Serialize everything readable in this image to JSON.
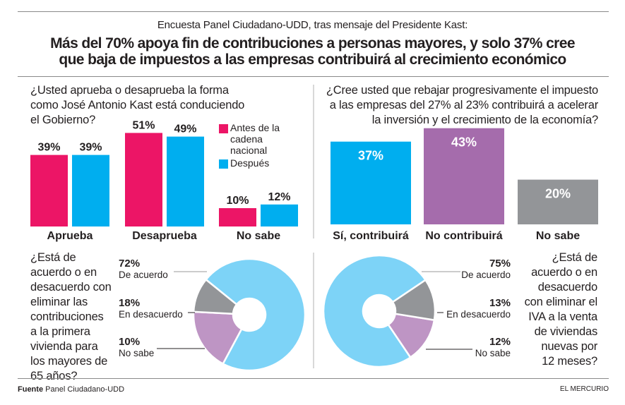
{
  "header": {
    "kicker": "Encuesta Panel Ciudadano-UDD, tras mensaje del Presidente Kast:",
    "headline_line1": "Más del 70% apoya fin de contribuciones a personas mayores, y solo 37% cree",
    "headline_line2": "que baja de impuestos a las empresas contribuirá al crecimiento económico"
  },
  "colors": {
    "pink": "#ec1566",
    "blue": "#00aeef",
    "purple": "#a56cac",
    "gray": "#939598",
    "pie_blue": "#7dd3f7",
    "pie_purple": "#be95c4",
    "pie_gray": "#939598"
  },
  "chart_data": [
    {
      "id": "approval",
      "type": "bar",
      "title": "¿Usted aprueba o desaprueba la forma como José Antonio Kast está conduciendo el Gobierno?",
      "title_lines": [
        "¿Usted aprueba o desaprueba la forma",
        "como José Antonio Kast está conduciendo",
        "el Gobierno?"
      ],
      "categories": [
        "Aprueba",
        "Desaprueba",
        "No sabe"
      ],
      "series": [
        {
          "name": "Antes de la cadena nacional",
          "name_lines": [
            "Antes de la",
            "cadena",
            "nacional"
          ],
          "color": "#ec1566",
          "values": [
            39,
            51,
            10
          ]
        },
        {
          "name": "Después",
          "name_lines": [
            "Después"
          ],
          "color": "#00aeef",
          "values": [
            39,
            49,
            12
          ]
        }
      ],
      "value_suffix": "%",
      "legend": "top-right",
      "grid": false
    },
    {
      "id": "tax",
      "type": "bar",
      "title": "¿Cree usted que rebajar progresivamente el impuesto a las empresas del 27% al 23% contribuirá a acelerar la inversión y el crecimiento de la economía?",
      "title_lines": [
        "¿Cree usted que rebajar progresivamente el impuesto",
        "a las empresas del 27% al 23% contribuirá a acelerar",
        "la inversión y el crecimiento de la economía?"
      ],
      "categories": [
        "Sí, contribuirá",
        "No contribuirá",
        "No sabe"
      ],
      "values": [
        37,
        43,
        20
      ],
      "colors": [
        "#00aeef",
        "#a56cac",
        "#939598"
      ],
      "value_suffix": "%",
      "grid": false
    },
    {
      "id": "contributions",
      "type": "pie",
      "title": "¿Está de acuerdo o en desacuerdo con eliminar las contribuciones a la primera vivienda para los mayores de 65 años?",
      "title_lines": [
        "¿Está de",
        "acuerdo o en",
        "desacuerdo con",
        "eliminar las",
        "contribuciones",
        "a la primera",
        "vivienda para",
        "los mayores de",
        "65 años?"
      ],
      "slices": [
        {
          "label": "De acuerdo",
          "value": 72,
          "color": "#7dd3f7"
        },
        {
          "label": "En desacuerdo",
          "value": 18,
          "color": "#be95c4"
        },
        {
          "label": "No sabe",
          "value": 10,
          "color": "#939598"
        }
      ],
      "value_suffix": "%",
      "donut": true,
      "legend": "left"
    },
    {
      "id": "iva",
      "type": "pie",
      "title": "¿Está de acuerdo o en desacuerdo con eliminar el IVA a la venta de viviendas nuevas por 12 meses?",
      "title_lines": [
        "¿Está de",
        "acuerdo o en",
        "desacuerdo",
        "con eliminar el",
        "IVA a la venta",
        "de viviendas",
        "nuevas por",
        "12 meses?"
      ],
      "slices": [
        {
          "label": "De acuerdo",
          "value": 75,
          "color": "#7dd3f7"
        },
        {
          "label": "En desacuerdo",
          "value": 13,
          "color": "#be95c4"
        },
        {
          "label": "No sabe",
          "value": 12,
          "color": "#939598"
        }
      ],
      "value_suffix": "%",
      "donut": true,
      "legend": "right"
    }
  ],
  "footer": {
    "source_label": "Fuente",
    "source_text": "Panel Ciudadano-UDD",
    "publisher": "EL MERCURIO"
  }
}
